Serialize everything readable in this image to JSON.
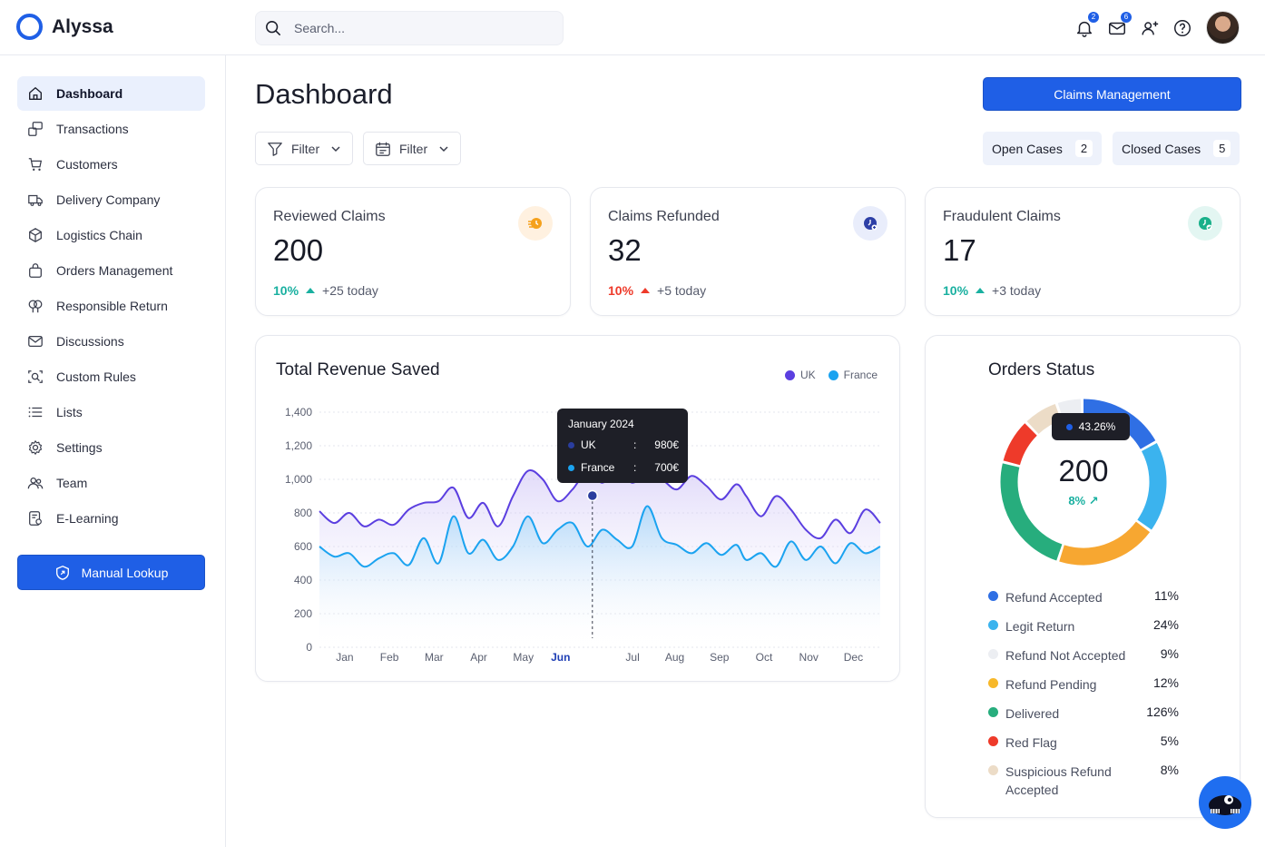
{
  "app": {
    "name": "Alyssa"
  },
  "header": {
    "search_placeholder": "Search...",
    "notifications_count": "2",
    "messages_count": "6"
  },
  "sidebar": {
    "items": [
      {
        "label": "Dashboard",
        "icon": "home-icon",
        "active": true
      },
      {
        "label": "Transactions",
        "icon": "transactions-icon"
      },
      {
        "label": "Customers",
        "icon": "cart-icon"
      },
      {
        "label": "Delivery Company",
        "icon": "truck-icon"
      },
      {
        "label": "Logistics Chain",
        "icon": "box-icon"
      },
      {
        "label": "Orders Management",
        "icon": "bag-icon"
      },
      {
        "label": "Responsible Return",
        "icon": "leaf-icon"
      },
      {
        "label": "Discussions",
        "icon": "mail-icon"
      },
      {
        "label": "Custom Rules",
        "icon": "scan-search-icon"
      },
      {
        "label": "Lists",
        "icon": "list-icon"
      },
      {
        "label": "Settings",
        "icon": "gear-icon"
      },
      {
        "label": "Team",
        "icon": "team-icon"
      },
      {
        "label": "E-Learning",
        "icon": "elearning-icon"
      }
    ],
    "manual_lookup": "Manual Lookup"
  },
  "main": {
    "title": "Dashboard",
    "claims_management": "Claims Management",
    "filter1": "Filter",
    "filter2": "Filter",
    "open_cases": {
      "label": "Open Cases",
      "count": "2"
    },
    "closed_cases": {
      "label": "Closed Cases",
      "count": "5"
    }
  },
  "stats": [
    {
      "label": "Reviewed Claims",
      "value": "200",
      "pct": "10%",
      "trend": "+25 today",
      "pct_color": "green",
      "icon": "clock-list-icon",
      "icon_bg": "#fff1e0",
      "icon_color": "#f5a11c"
    },
    {
      "label": "Claims Refunded",
      "value": "32",
      "pct": "10%",
      "trend": "+5 today",
      "pct_color": "red",
      "icon": "refund-clock-icon",
      "icon_bg": "#e9edfb",
      "icon_color": "#2d3fa6"
    },
    {
      "label": "Fraudulent Claims",
      "value": "17",
      "pct": "10%",
      "trend": "+3 today",
      "pct_color": "green",
      "icon": "check-clock-icon",
      "icon_bg": "#e3f6f2",
      "icon_color": "#19b08a"
    }
  ],
  "revenue": {
    "title": "Total Revenue Saved",
    "tooltip": {
      "title": "January 2024",
      "rows": [
        {
          "name": "UK",
          "sep": ":",
          "value": "980€",
          "color": "#2a3d9e"
        },
        {
          "name": "France",
          "sep": ":",
          "value": "700€",
          "color": "#1ba3f0"
        }
      ]
    }
  },
  "chart_data": {
    "type": "area",
    "title": "Total Revenue Saved",
    "categories": [
      "Jan",
      "Feb",
      "Mar",
      "Apr",
      "May",
      "Jun",
      "Jul",
      "Aug",
      "Sep",
      "Oct",
      "Nov",
      "Dec"
    ],
    "highlighted_category": "Jun",
    "yticks": [
      "1,400",
      "1,200",
      "1,000",
      "800",
      "600",
      "400",
      "200",
      "0"
    ],
    "ylim": [
      0,
      1400
    ],
    "grid": true,
    "legend": "top-right",
    "series": [
      {
        "name": "UK",
        "color": "#5b3fe0",
        "x": [
          0,
          0.3,
          0.6,
          0.9,
          1.2,
          1.5,
          1.8,
          2.1,
          2.4,
          2.7,
          3.0,
          3.3,
          3.6,
          3.9,
          4.2,
          4.5,
          4.8,
          5.1,
          5.4,
          5.7,
          6.0,
          6.3,
          6.6,
          6.9,
          7.2,
          7.5,
          7.8,
          8.1,
          8.4,
          8.6,
          8.9,
          9.2,
          9.5,
          9.8,
          10.1,
          10.4,
          10.7,
          11.0,
          11.3
        ],
        "values": [
          810,
          740,
          800,
          720,
          760,
          730,
          820,
          860,
          870,
          950,
          770,
          860,
          720,
          900,
          1050,
          1000,
          870,
          940,
          1050,
          980,
          1060,
          980,
          1040,
          1000,
          940,
          1020,
          960,
          880,
          970,
          900,
          780,
          900,
          820,
          700,
          650,
          760,
          680,
          820,
          740
        ]
      },
      {
        "name": "France",
        "color": "#1ba3f0",
        "x": [
          0,
          0.3,
          0.6,
          0.9,
          1.2,
          1.5,
          1.8,
          2.1,
          2.4,
          2.7,
          3.0,
          3.3,
          3.6,
          3.9,
          4.2,
          4.5,
          4.8,
          5.1,
          5.4,
          5.7,
          6.0,
          6.3,
          6.6,
          6.9,
          7.2,
          7.5,
          7.8,
          8.1,
          8.4,
          8.6,
          8.9,
          9.2,
          9.5,
          9.8,
          10.1,
          10.4,
          10.7,
          11.0,
          11.3
        ],
        "values": [
          600,
          540,
          560,
          480,
          530,
          560,
          490,
          650,
          500,
          780,
          560,
          640,
          520,
          600,
          780,
          620,
          700,
          740,
          600,
          700,
          640,
          600,
          840,
          650,
          610,
          560,
          620,
          550,
          610,
          520,
          560,
          480,
          630,
          520,
          600,
          500,
          620,
          560,
          600
        ]
      }
    ]
  },
  "orders_status": {
    "title": "Orders Status",
    "center_value": "200",
    "center_pct": "8%",
    "tooltip": "43.26%",
    "legend": [
      {
        "name": "Refund Accepted",
        "value": "11%",
        "color": "#2f6fe4"
      },
      {
        "name": "Legit Return",
        "value": "24%",
        "color": "#3bb3ee"
      },
      {
        "name": "Refund Not Accepted",
        "value": "9%",
        "color": "#eceef2"
      },
      {
        "name": "Refund Pending",
        "value": "12%",
        "color": "#f7a731"
      },
      {
        "name": "Delivered",
        "value": "126%",
        "color": "#27ad7d"
      },
      {
        "name": "Red Flag",
        "value": "5%",
        "color": "#ee3a2a"
      },
      {
        "name": "Suspicious Refund Accepted",
        "value": "8%",
        "color": "#ecdcc7"
      }
    ]
  }
}
